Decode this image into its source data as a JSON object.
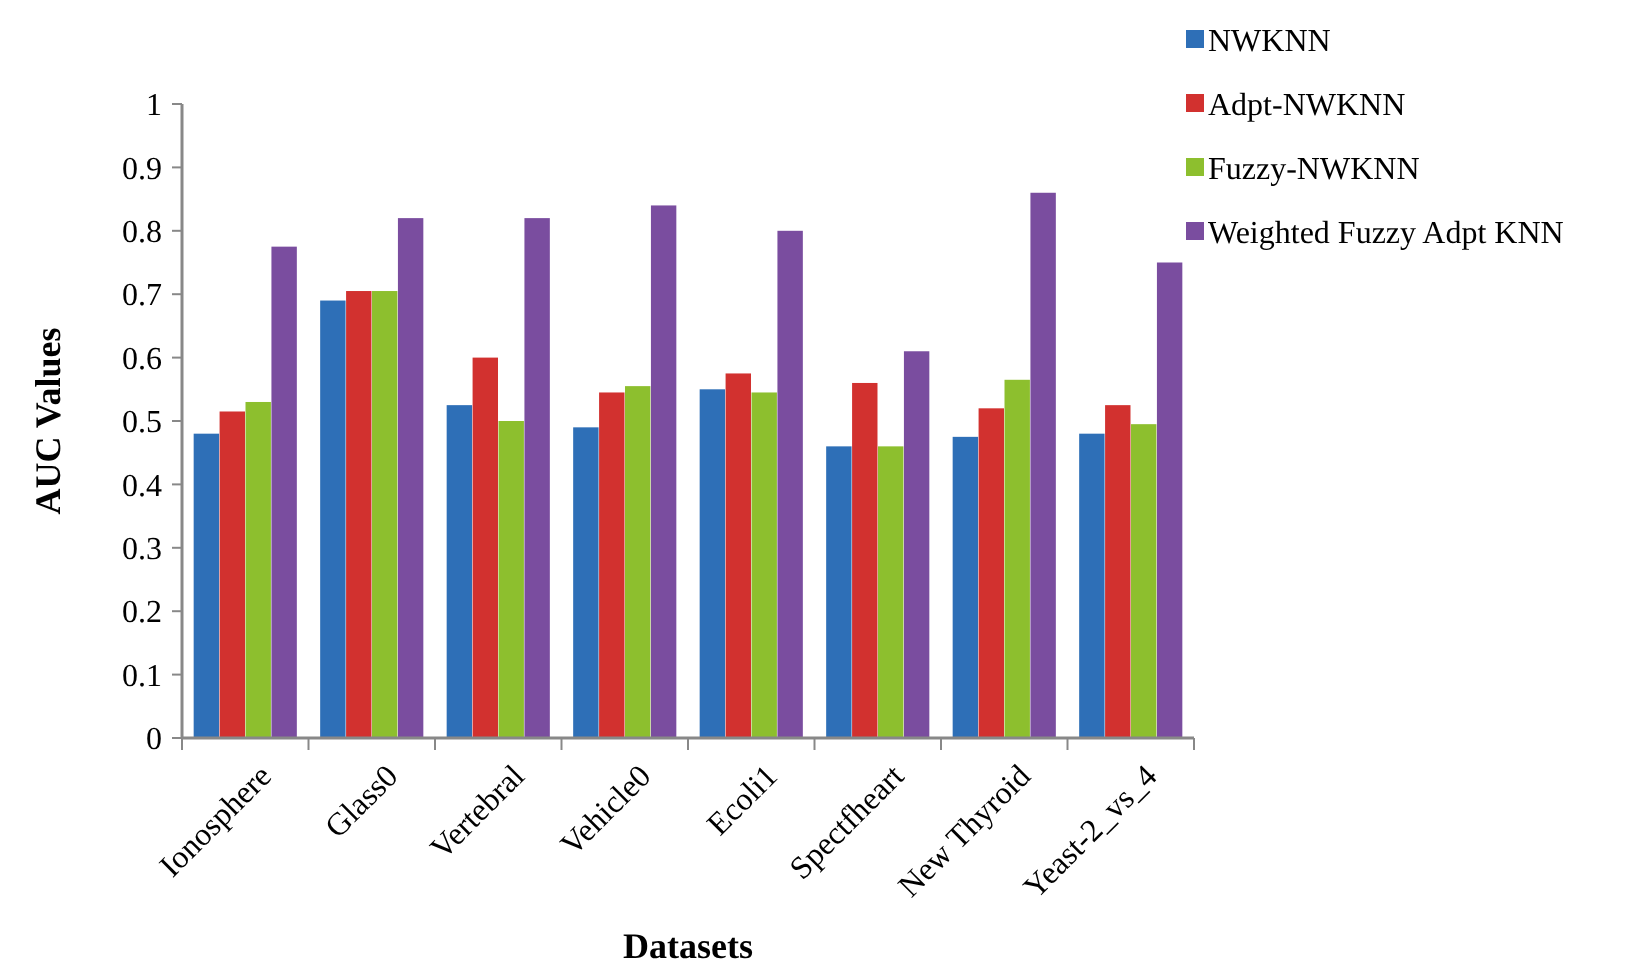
{
  "chart_data": {
    "type": "bar",
    "xlabel": "Datasets",
    "ylabel": "AUC Values",
    "categories": [
      "Ionosphere",
      "Glass0",
      "Vertebral",
      "Vehicle0",
      "Ecoli1",
      "Spectfheart",
      "New Thyroid",
      "Yeast-2_vs_4"
    ],
    "series": [
      {
        "name": "NWKNN",
        "color": "#2e6fb7",
        "values": [
          0.48,
          0.69,
          0.525,
          0.49,
          0.55,
          0.46,
          0.475,
          0.48
        ]
      },
      {
        "name": "Adpt-NWKNN",
        "color": "#d2312f",
        "values": [
          0.515,
          0.705,
          0.6,
          0.545,
          0.575,
          0.56,
          0.52,
          0.525
        ]
      },
      {
        "name": "Fuzzy-NWKNN",
        "color": "#8dbf2e",
        "values": [
          0.53,
          0.705,
          0.5,
          0.555,
          0.545,
          0.46,
          0.565,
          0.495
        ]
      },
      {
        "name": "Weighted Fuzzy Adpt KNN",
        "color": "#7a4d9f",
        "values": [
          0.775,
          0.82,
          0.82,
          0.84,
          0.8,
          0.61,
          0.86,
          0.75
        ]
      }
    ],
    "ylim": [
      0,
      1
    ],
    "yticks": [
      0,
      0.1,
      0.2,
      0.3,
      0.4,
      0.5,
      0.6,
      0.7,
      0.8,
      0.9,
      1
    ],
    "legend": "top right"
  }
}
